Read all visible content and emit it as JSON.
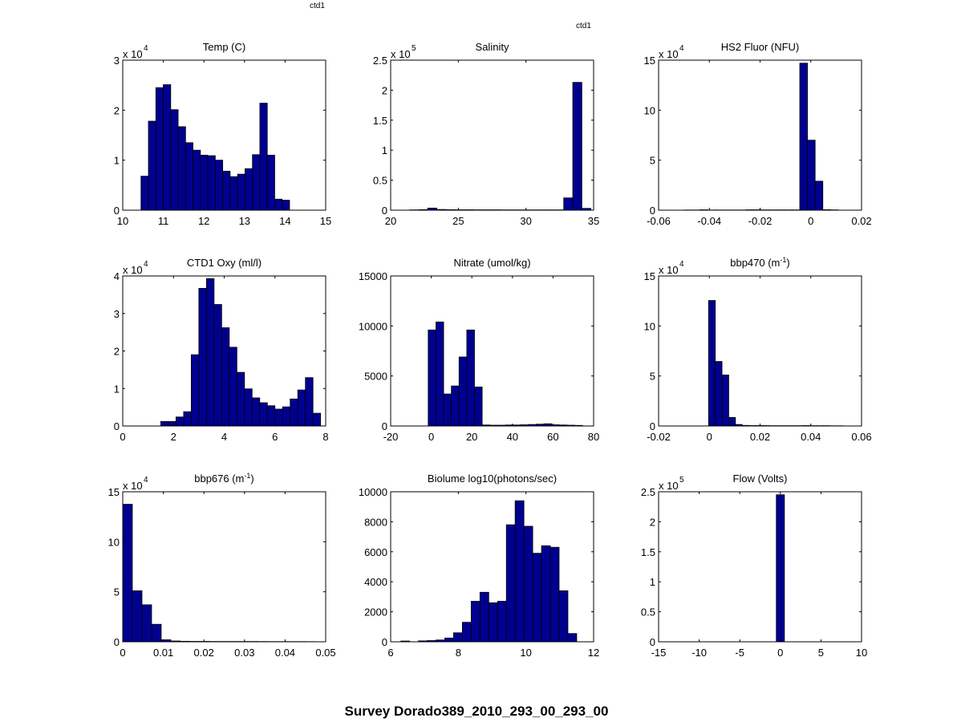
{
  "figure": {
    "corner_labels": [
      "ctd1",
      "ctd1"
    ],
    "suptitle": "Survey Dorado389_2010_293_00_293_00"
  },
  "style": {
    "bar_fill": "#00008F",
    "bar_edge": "#000000",
    "axis_color": "#000000",
    "background": "#ffffff"
  },
  "chart_data": [
    {
      "type": "bar",
      "title": "Temp (C)",
      "title_sup": "",
      "xlim": [
        10,
        15
      ],
      "xticks": [
        "10",
        "11",
        "12",
        "13",
        "14",
        "15"
      ],
      "xtick_values": [
        10,
        11,
        12,
        13,
        14,
        15
      ],
      "ylim": [
        0,
        30000
      ],
      "yticks": [
        "0",
        "1",
        "2",
        "3"
      ],
      "ytick_values": [
        0,
        10000,
        20000,
        30000
      ],
      "scale_prefix": "x 10",
      "scale_exp": "4",
      "bin_start": 10.45,
      "bin_width": 0.183,
      "values": [
        6800,
        17800,
        24500,
        25100,
        20100,
        16700,
        13500,
        12000,
        11000,
        10900,
        10000,
        7800,
        6700,
        7200,
        8300,
        11100,
        21400,
        11000,
        2200,
        2000
      ]
    },
    {
      "type": "bar",
      "title": "Salinity",
      "title_sup": "",
      "xlim": [
        20,
        35
      ],
      "xticks": [
        "20",
        "25",
        "30",
        "35"
      ],
      "xtick_values": [
        20,
        25,
        30,
        35
      ],
      "ylim": [
        0,
        250000
      ],
      "yticks": [
        "0",
        "0.5",
        "1",
        "1.5",
        "2",
        "2.5"
      ],
      "ytick_values": [
        0,
        50000,
        100000,
        150000,
        200000,
        250000
      ],
      "scale_prefix": "x 10",
      "scale_exp": "5",
      "bin_start": 21.4,
      "bin_width": 0.67,
      "values": [
        500,
        900,
        3500,
        1200,
        800,
        700,
        700,
        600,
        600,
        600,
        500,
        500,
        500,
        500,
        500,
        500,
        500,
        20500,
        213000,
        3000
      ]
    },
    {
      "type": "bar",
      "title": "HS2 Fluor (NFU)",
      "title_sup": "",
      "xlim": [
        -0.06,
        0.02
      ],
      "xticks": [
        "-0.06",
        "-0.04",
        "-0.02",
        "0",
        "0.02"
      ],
      "xtick_values": [
        -0.06,
        -0.04,
        -0.02,
        0,
        0.02
      ],
      "ylim": [
        0,
        150000
      ],
      "yticks": [
        "0",
        "5",
        "10",
        "15"
      ],
      "ytick_values": [
        0,
        50000,
        100000,
        150000
      ],
      "scale_prefix": "x 10",
      "scale_exp": "4",
      "bin_start": -0.0498,
      "bin_width": 0.00303,
      "values": [
        200,
        200,
        400,
        200,
        200,
        200,
        200,
        200,
        400,
        400,
        300,
        300,
        300,
        300,
        300,
        147000,
        70000,
        29000,
        500,
        300
      ]
    },
    {
      "type": "bar",
      "title": "CTD1 Oxy (ml/l)",
      "title_sup": "",
      "xlim": [
        0,
        8
      ],
      "xticks": [
        "0",
        "2",
        "4",
        "6",
        "8"
      ],
      "xtick_values": [
        0,
        2,
        4,
        6,
        8
      ],
      "ylim": [
        0,
        40000
      ],
      "yticks": [
        "0",
        "1",
        "2",
        "3",
        "4"
      ],
      "ytick_values": [
        0,
        10000,
        20000,
        30000,
        40000
      ],
      "scale_prefix": "x 10",
      "scale_exp": "4",
      "bin_start": 1.5,
      "bin_width": 0.3,
      "values": [
        1200,
        1200,
        2400,
        3800,
        19000,
        36700,
        39300,
        32400,
        26200,
        21000,
        14300,
        9900,
        7500,
        6200,
        5400,
        4500,
        5100,
        7200,
        9600,
        12900,
        3400
      ]
    },
    {
      "type": "bar",
      "title": "Nitrate (umol/kg)",
      "title_sup": "",
      "xlim": [
        -20,
        80
      ],
      "xticks": [
        "-20",
        "0",
        "20",
        "40",
        "60",
        "80"
      ],
      "xtick_values": [
        -20,
        0,
        20,
        40,
        60,
        80
      ],
      "ylim": [
        0,
        15000
      ],
      "yticks": [
        "0",
        "5000",
        "10000",
        "15000"
      ],
      "ytick_values": [
        0,
        5000,
        10000,
        15000
      ],
      "scale_prefix": "",
      "scale_exp": "",
      "bin_start": -1.5,
      "bin_width": 3.8,
      "values": [
        9600,
        10400,
        3200,
        4000,
        6900,
        9600,
        3900,
        100,
        80,
        80,
        100,
        100,
        120,
        150,
        180,
        220,
        120,
        100,
        80,
        60
      ]
    },
    {
      "type": "bar",
      "title": "bbp470 (m",
      "title_sup": "-1",
      "xlim": [
        -0.02,
        0.06
      ],
      "xticks": [
        "-0.02",
        "0",
        "0.02",
        "0.04",
        "0.06"
      ],
      "xtick_values": [
        -0.02,
        0,
        0.02,
        0.04,
        0.06
      ],
      "ylim": [
        0,
        150000
      ],
      "yticks": [
        "0",
        "5",
        "10",
        "15"
      ],
      "ytick_values": [
        0,
        50000,
        100000,
        150000
      ],
      "scale_prefix": "x 10",
      "scale_exp": "4",
      "bin_start": -0.0003,
      "bin_width": 0.00265,
      "values": [
        125500,
        64500,
        51000,
        8500,
        1500,
        600,
        400,
        400,
        400,
        300,
        300,
        300,
        300,
        300,
        400,
        300,
        300,
        300,
        200,
        200
      ]
    },
    {
      "type": "bar",
      "title": "bbp676 (m",
      "title_sup": "-1",
      "xlim": [
        0,
        0.05
      ],
      "xticks": [
        "0",
        "0.01",
        "0.02",
        "0.03",
        "0.04",
        "0.05"
      ],
      "xtick_values": [
        0,
        0.01,
        0.02,
        0.03,
        0.04,
        0.05
      ],
      "ylim": [
        0,
        150000
      ],
      "yticks": [
        "0",
        "5",
        "10",
        "15"
      ],
      "ytick_values": [
        0,
        50000,
        100000,
        150000
      ],
      "scale_prefix": "x 10",
      "scale_exp": "4",
      "bin_start": 0,
      "bin_width": 0.00237,
      "values": [
        137500,
        51000,
        37000,
        17500,
        2000,
        800,
        500,
        400,
        400,
        300,
        300,
        300,
        300,
        300,
        250,
        200,
        200,
        200,
        200,
        150
      ]
    },
    {
      "type": "bar",
      "title": "Biolume log10(photons/sec)",
      "title_sup": "",
      "xlim": [
        6,
        12
      ],
      "xticks": [
        "6",
        "8",
        "10",
        "12"
      ],
      "xtick_values": [
        6,
        8,
        10,
        12
      ],
      "ylim": [
        0,
        10000
      ],
      "yticks": [
        "0",
        "2000",
        "4000",
        "6000",
        "8000",
        "10000"
      ],
      "ytick_values": [
        0,
        2000,
        4000,
        6000,
        8000,
        10000
      ],
      "scale_prefix": "",
      "scale_exp": "",
      "bin_start": 6.3,
      "bin_width": 0.26,
      "values": [
        50,
        0,
        60,
        80,
        120,
        250,
        600,
        1300,
        2700,
        3300,
        2600,
        2700,
        7800,
        9400,
        7700,
        5900,
        6400,
        6300,
        3400,
        550
      ]
    },
    {
      "type": "bar",
      "title": "Flow (Volts)",
      "title_sup": "",
      "xlim": [
        -15,
        10
      ],
      "xticks": [
        "-15",
        "-10",
        "-5",
        "0",
        "5",
        "10"
      ],
      "xtick_values": [
        -15,
        -10,
        -5,
        0,
        5,
        10
      ],
      "ylim": [
        0,
        250000
      ],
      "yticks": [
        "0",
        "0.5",
        "1",
        "1.5",
        "2",
        "2.5"
      ],
      "ytick_values": [
        0,
        50000,
        100000,
        150000,
        200000,
        250000
      ],
      "scale_prefix": "x 10",
      "scale_exp": "5",
      "bin_start": -0.5,
      "bin_width": 1.0,
      "values": [
        245000
      ]
    }
  ]
}
